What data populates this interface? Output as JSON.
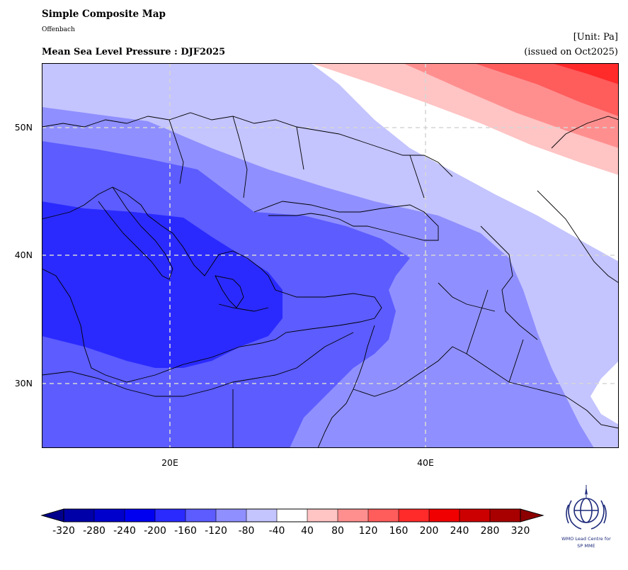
{
  "header": {
    "title": "Simple Composite Map",
    "subtitle": "Offenbach",
    "map_title": "Mean Sea Level Pressure : DJF2025",
    "unit": "[Unit: Pa]",
    "issued": "(issued on Oct2025)"
  },
  "map": {
    "projection": "PlateCarree",
    "lon_range": [
      10,
      55
    ],
    "lat_range": [
      25,
      55
    ],
    "lat_labels": [
      "50N",
      "40N",
      "30N"
    ],
    "lon_labels": [
      "20E",
      "40E"
    ],
    "gridlines": true,
    "field": "Mean Sea Level Pressure anomaly",
    "pattern": "negative anomaly centred over the central Mediterranean / Ionian Sea (below -200), positive anomaly over southern Russia in the north-east corner (up to 200)"
  },
  "colorbar": {
    "ticks": [
      "-320",
      "-280",
      "-240",
      "-200",
      "-160",
      "-120",
      "-80",
      "-40",
      "40",
      "80",
      "120",
      "160",
      "200",
      "240",
      "280",
      "320"
    ],
    "colors": [
      "#0000a8",
      "#0000cc",
      "#0000f0",
      "#2a2aff",
      "#5c5cff",
      "#8f8fff",
      "#c4c4ff",
      "#ffffff",
      "#ffc4c4",
      "#ff8f8f",
      "#ff5c5c",
      "#ff2a2a",
      "#f00000",
      "#cc0000",
      "#a80000"
    ],
    "under_color": "#00008c",
    "over_color": "#8c0000"
  },
  "logo": {
    "name": "wmo-emblem",
    "line1": "WMO Lead Centre for",
    "line2": "SP MME"
  }
}
